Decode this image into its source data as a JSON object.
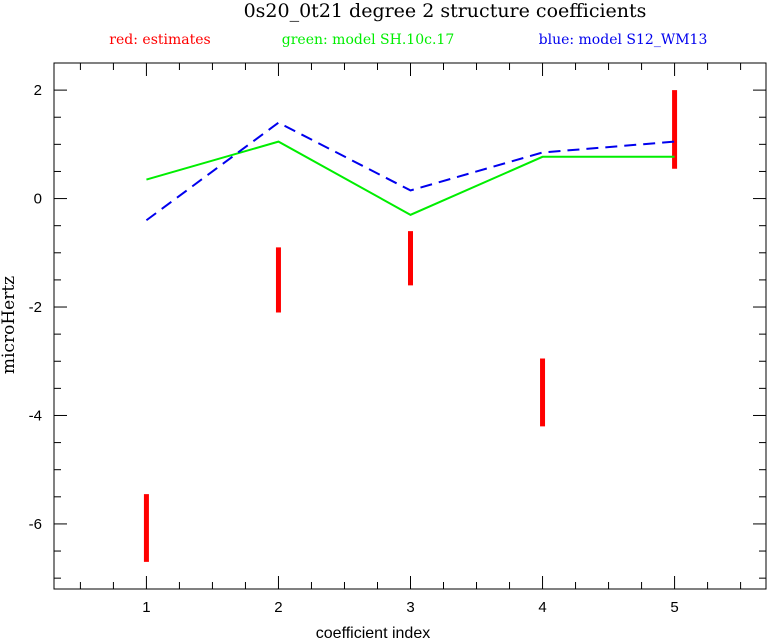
{
  "chart_data": {
    "type": "line",
    "title": "0s20_0t21 degree 2 structure coefficients",
    "xlabel": "coefficient index",
    "ylabel": "microHertz",
    "xlim": [
      0.3,
      5.7
    ],
    "ylim": [
      -7.2,
      2.5
    ],
    "x_ticks": [
      1,
      2,
      3,
      4,
      5
    ],
    "y_ticks": [
      -6,
      -4,
      -2,
      0,
      2
    ],
    "legend": [
      {
        "text": "red: estimates",
        "color": "#ff0000"
      },
      {
        "text": "green: model SH.10c.17",
        "color": "#00ee00"
      },
      {
        "text": "blue: model S12_WM13",
        "color": "#0000ee"
      }
    ],
    "series": [
      {
        "kind": "errorbar",
        "color": "#ff0000",
        "x": [
          1,
          2,
          3,
          4,
          5
        ],
        "low": [
          -6.7,
          -2.1,
          -1.6,
          -4.2,
          0.55
        ],
        "high": [
          -5.45,
          -0.9,
          -0.6,
          -2.95,
          2.0
        ]
      },
      {
        "kind": "line",
        "color": "#00ee00",
        "style": "solid",
        "x": [
          1,
          2,
          3,
          4,
          5
        ],
        "values": [
          0.35,
          1.05,
          -0.3,
          0.77,
          0.77
        ]
      },
      {
        "kind": "line",
        "color": "#0000ee",
        "style": "dashed",
        "x": [
          1,
          2,
          3,
          4,
          5
        ],
        "values": [
          -0.4,
          1.4,
          0.15,
          0.85,
          1.05
        ]
      }
    ]
  }
}
